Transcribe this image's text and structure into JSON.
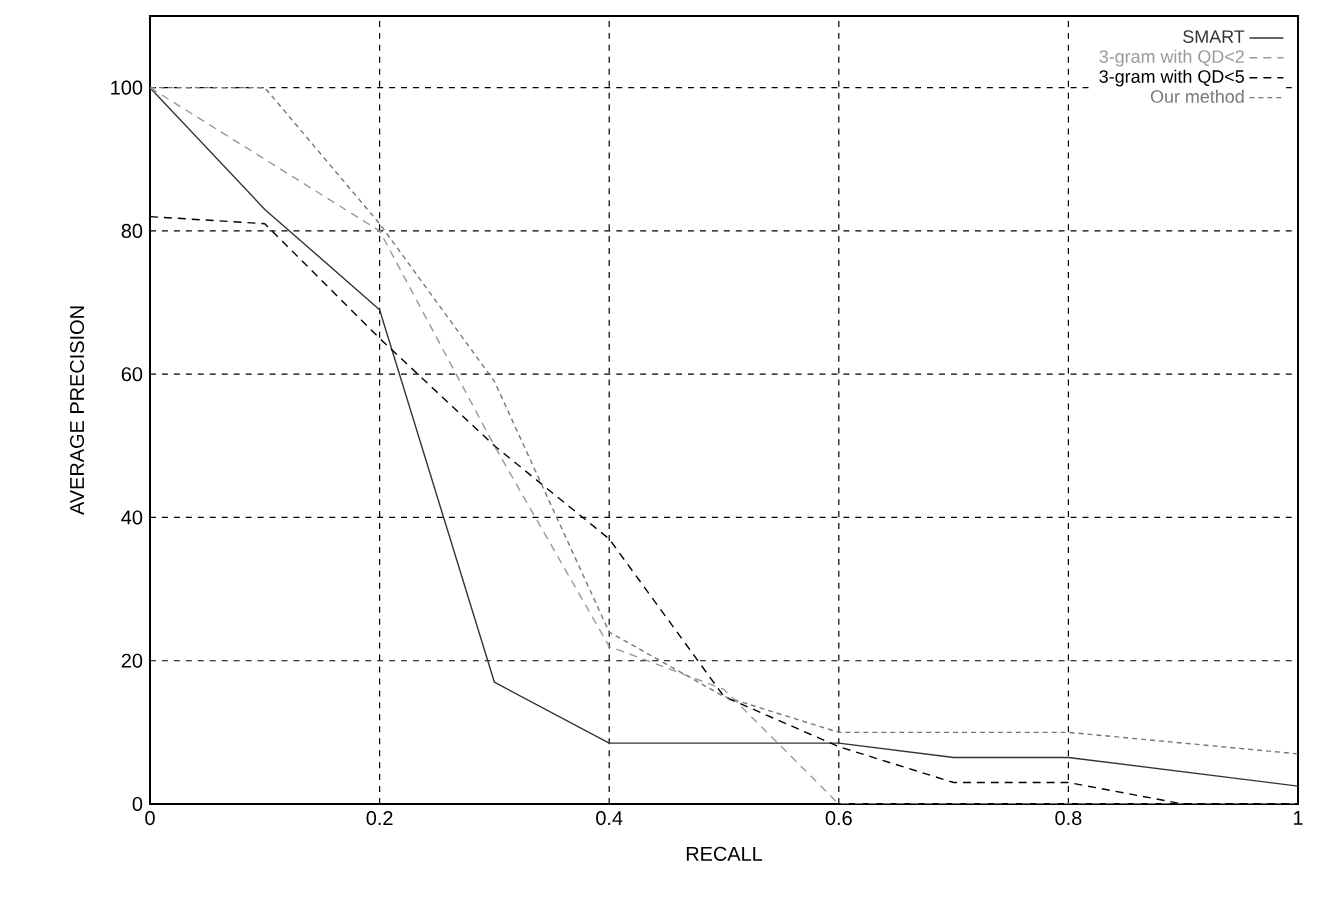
{
  "chart_data": {
    "type": "line",
    "xlabel": "RECALL",
    "ylabel": "AVERAGE PRECISION",
    "x": [
      0,
      0.1,
      0.2,
      0.3,
      0.4,
      0.5,
      0.6,
      0.7,
      0.8,
      0.9,
      1.0
    ],
    "xlim": [
      0,
      1
    ],
    "xticks": [
      0,
      0.2,
      0.4,
      0.6,
      0.8,
      1
    ],
    "ylim": [
      0,
      110
    ],
    "yticks": [
      0,
      20,
      40,
      60,
      80,
      100
    ],
    "grid": true,
    "legend": "top right",
    "series": [
      {
        "name": "SMART",
        "color": "#333333",
        "line_style": "solid",
        "values": [
          100,
          83,
          69,
          17,
          8.5,
          8.5,
          8.5,
          6.5,
          6.5,
          4.5,
          2.5
        ]
      },
      {
        "name": "3-gram with QD<2",
        "color": "#999999",
        "line_style": "dashed",
        "values": [
          100,
          90,
          80,
          50,
          22,
          16,
          0,
          0,
          0,
          0,
          0
        ]
      },
      {
        "name": "3-gram with QD<5",
        "color": "#000000",
        "line_style": "dashed",
        "values": [
          82,
          81,
          65,
          50,
          37,
          15,
          8,
          3,
          3,
          0,
          0
        ]
      },
      {
        "name": "Our method",
        "color": "#777777",
        "line_style": "dotted",
        "values": [
          100,
          100,
          81,
          59,
          24,
          15,
          10,
          10,
          10,
          8.5,
          7
        ]
      }
    ]
  }
}
